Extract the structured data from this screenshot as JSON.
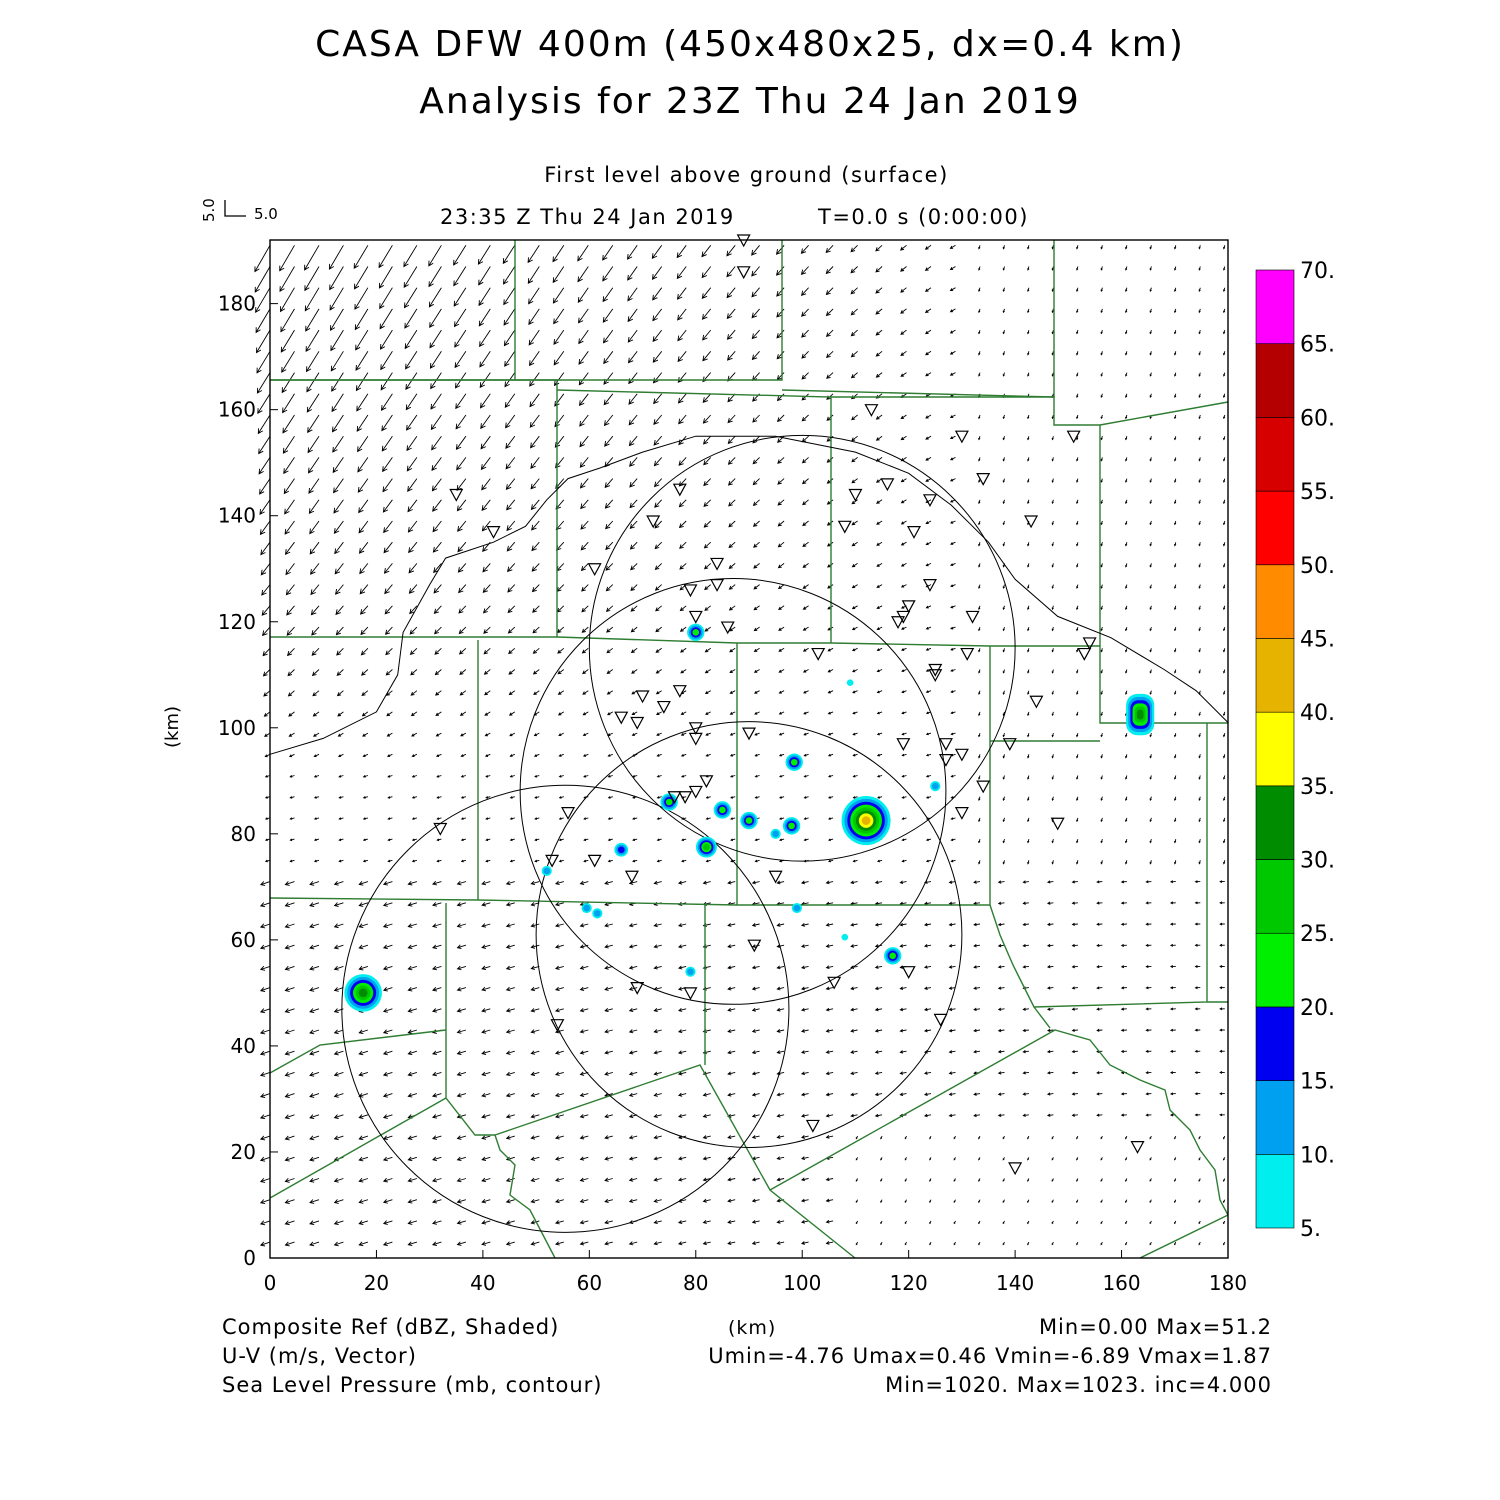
{
  "title_line1": "CASA DFW 400m (450x480x25, dx=0.4 km)",
  "title_line2": "Analysis for 23Z Thu 24 Jan 2019",
  "level_label": "First level above ground (surface)",
  "time_label": "23:35 Z Thu 24 Jan 2019",
  "t_label": "T=0.0 s (0:00:00)",
  "vector_key": {
    "u": "5.0",
    "v": "5.0"
  },
  "x_axis": {
    "label": "(km)",
    "ticks": [
      "0",
      "20",
      "40",
      "60",
      "80",
      "100",
      "120",
      "140",
      "160",
      "180"
    ]
  },
  "y_axis": {
    "label": "(km)",
    "ticks": [
      "0",
      "20",
      "40",
      "60",
      "80",
      "100",
      "120",
      "140",
      "160",
      "180"
    ]
  },
  "colorbar": {
    "labels": [
      "5.",
      "10.",
      "15.",
      "20.",
      "25.",
      "30.",
      "35.",
      "40.",
      "45.",
      "50.",
      "55.",
      "60.",
      "65.",
      "70."
    ],
    "colors": [
      "#00eeee",
      "#00a0f0",
      "#0000f0",
      "#00ee00",
      "#00c800",
      "#008c00",
      "#ffff00",
      "#e6b400",
      "#ff8c00",
      "#ff0000",
      "#d70000",
      "#b40000",
      "#ff00ff"
    ]
  },
  "footer": {
    "field1": "Composite Ref (dBZ, Shaded)",
    "field1_stats": "Min=0.00 Max=51.2",
    "field2": "U-V (m/s, Vector)",
    "field2_stats": "Umin=-4.76 Umax=0.46 Vmin=-6.89 Vmax=1.87",
    "field3": "Sea Level Pressure (mb, contour)",
    "field3_stats": "Min=1020. Max=1023. inc=4.000",
    "unit": "(km)"
  },
  "map_data": {
    "xlim": [
      0,
      180
    ],
    "ylim": [
      0,
      192
    ],
    "radar_rings": [
      {
        "cx": 55.5,
        "cy": 47,
        "r": 42
      },
      {
        "cx": 90,
        "cy": 61,
        "r": 40
      },
      {
        "cx": 87,
        "cy": 88,
        "r": 40
      },
      {
        "cx": 100,
        "cy": 115,
        "r": 40
      }
    ],
    "pressure_contour": [
      [
        0,
        95
      ],
      [
        10,
        98
      ],
      [
        20,
        103
      ],
      [
        24,
        110
      ],
      [
        25,
        118
      ],
      [
        30,
        127
      ],
      [
        33,
        132
      ],
      [
        42,
        135
      ],
      [
        48,
        138
      ],
      [
        52,
        143
      ],
      [
        56,
        147
      ],
      [
        62,
        149
      ],
      [
        70,
        152
      ],
      [
        80,
        155
      ],
      [
        95,
        155
      ],
      [
        110,
        152
      ],
      [
        120,
        148
      ],
      [
        128,
        142
      ],
      [
        135,
        135
      ],
      [
        140,
        128
      ],
      [
        148,
        121
      ],
      [
        158,
        117
      ],
      [
        168,
        111
      ],
      [
        174,
        107
      ],
      [
        180,
        101
      ]
    ],
    "echoes": [
      {
        "x": 17.5,
        "y": 50,
        "dbz": 33
      },
      {
        "x": 163.5,
        "y": 102.5,
        "dbz": 34
      },
      {
        "x": 112,
        "y": 82.5,
        "dbz": 44
      },
      {
        "x": 80,
        "y": 118,
        "dbz": 24
      },
      {
        "x": 98.5,
        "y": 93.5,
        "dbz": 24
      },
      {
        "x": 75,
        "y": 86,
        "dbz": 22
      },
      {
        "x": 85,
        "y": 84.5,
        "dbz": 22
      },
      {
        "x": 90,
        "y": 82.5,
        "dbz": 22
      },
      {
        "x": 98,
        "y": 81.5,
        "dbz": 20
      },
      {
        "x": 82,
        "y": 77.5,
        "dbz": 26
      },
      {
        "x": 66,
        "y": 77,
        "dbz": 16
      },
      {
        "x": 95,
        "y": 80,
        "dbz": 12
      },
      {
        "x": 117,
        "y": 57,
        "dbz": 20
      },
      {
        "x": 59.5,
        "y": 66,
        "dbz": 12
      },
      {
        "x": 61.5,
        "y": 65,
        "dbz": 12
      },
      {
        "x": 99,
        "y": 66,
        "dbz": 12
      },
      {
        "x": 52,
        "y": 73,
        "dbz": 10
      },
      {
        "x": 125,
        "y": 89,
        "dbz": 10
      },
      {
        "x": 109,
        "y": 108.5,
        "dbz": 8
      },
      {
        "x": 108,
        "y": 60.5,
        "dbz": 8
      },
      {
        "x": 79,
        "y": 54,
        "dbz": 10
      }
    ],
    "stations": [
      [
        89,
        192
      ],
      [
        89,
        186
      ],
      [
        42,
        137
      ],
      [
        35,
        144
      ],
      [
        84,
        131
      ],
      [
        84,
        127
      ],
      [
        79,
        126
      ],
      [
        72,
        139
      ],
      [
        77,
        145
      ],
      [
        61,
        130
      ],
      [
        80,
        121
      ],
      [
        86,
        119
      ],
      [
        103,
        114
      ],
      [
        113,
        160
      ],
      [
        110,
        144
      ],
      [
        116,
        146
      ],
      [
        108,
        138
      ],
      [
        124,
        143
      ],
      [
        130,
        155
      ],
      [
        134,
        147
      ],
      [
        143,
        139
      ],
      [
        121,
        137
      ],
      [
        124,
        127
      ],
      [
        119,
        121
      ],
      [
        120,
        123
      ],
      [
        118,
        120
      ],
      [
        132,
        121
      ],
      [
        131,
        114
      ],
      [
        125,
        111
      ],
      [
        125,
        110
      ],
      [
        144,
        105
      ],
      [
        154,
        116
      ],
      [
        153,
        114
      ],
      [
        151,
        155
      ],
      [
        119,
        97
      ],
      [
        127,
        97
      ],
      [
        130,
        95
      ],
      [
        127,
        94
      ],
      [
        139,
        97
      ],
      [
        134,
        89
      ],
      [
        130,
        84
      ],
      [
        148,
        82
      ],
      [
        70,
        106
      ],
      [
        77,
        107
      ],
      [
        74,
        104
      ],
      [
        66,
        102
      ],
      [
        69,
        101
      ],
      [
        80,
        100
      ],
      [
        80,
        98
      ],
      [
        90,
        99
      ],
      [
        82,
        90
      ],
      [
        80,
        88
      ],
      [
        78,
        87
      ],
      [
        76,
        87
      ],
      [
        56,
        84
      ],
      [
        32,
        81
      ],
      [
        61,
        75
      ],
      [
        53,
        75
      ],
      [
        68,
        72
      ],
      [
        95,
        72
      ],
      [
        91,
        59
      ],
      [
        120,
        54
      ],
      [
        106,
        52
      ],
      [
        69,
        51
      ],
      [
        79,
        50
      ],
      [
        54,
        44
      ],
      [
        126,
        45
      ],
      [
        102,
        25
      ],
      [
        140,
        17
      ],
      [
        163,
        21
      ]
    ]
  }
}
